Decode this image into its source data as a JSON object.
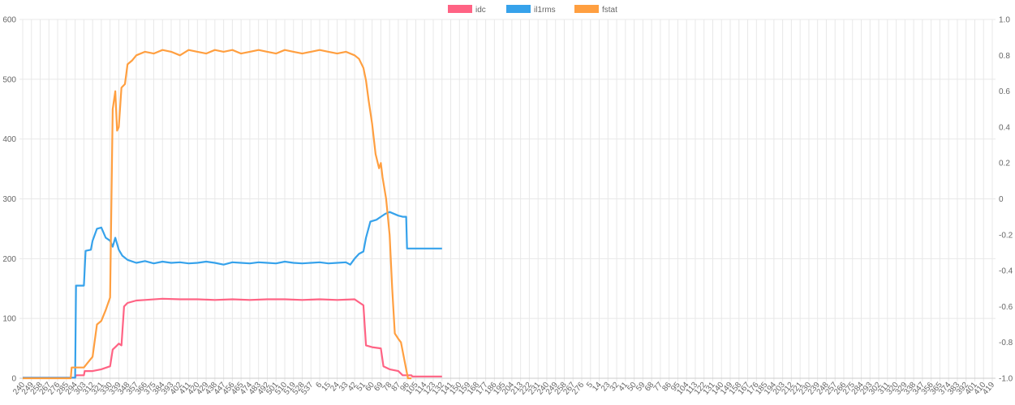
{
  "chart_data": {
    "type": "line",
    "legend": {
      "position": "top",
      "items": [
        "idc",
        "il1rms",
        "fstat"
      ]
    },
    "grid": true,
    "y_left": {
      "min": 0,
      "max": 600,
      "ticks": [
        0,
        100,
        200,
        300,
        400,
        500,
        600
      ]
    },
    "y_right": {
      "min": -1.0,
      "max": 1.0,
      "ticks": [
        -1.0,
        -0.8,
        -0.6,
        -0.4,
        -0.2,
        0,
        0.2,
        0.4,
        0.6,
        0.8,
        1.0
      ]
    },
    "x_tick_labels": [
      "240",
      "249",
      "258",
      "267",
      "276",
      "285",
      "294",
      "303",
      "312",
      "321",
      "330",
      "339",
      "348",
      "357",
      "366",
      "375",
      "384",
      "393",
      "402",
      "411",
      "420",
      "429",
      "438",
      "447",
      "456",
      "465",
      "474",
      "483",
      "492",
      "501",
      "510",
      "519",
      "528",
      "537",
      "6",
      "15",
      "24",
      "33",
      "42",
      "51",
      "60",
      "69",
      "78",
      "87",
      "96",
      "105",
      "114",
      "123",
      "132",
      "141",
      "150",
      "159",
      "168",
      "177",
      "186",
      "195",
      "204",
      "213",
      "222",
      "231",
      "240",
      "249",
      "258",
      "267",
      "276",
      "5",
      "14",
      "23",
      "32",
      "41",
      "50",
      "59",
      "68",
      "77",
      "86",
      "95",
      "104",
      "113",
      "122",
      "131",
      "140",
      "149",
      "158",
      "167",
      "176",
      "185",
      "194",
      "203",
      "212",
      "221",
      "230",
      "239",
      "248",
      "257",
      "266",
      "275",
      "284",
      "293",
      "302",
      "311",
      "320",
      "329",
      "338",
      "347",
      "356",
      "365",
      "374",
      "383",
      "392",
      "401",
      "410",
      "419"
    ],
    "series": [
      {
        "name": "idc",
        "color": "#ff6384",
        "axis": "left",
        "points": [
          [
            0,
            1
          ],
          [
            6,
            1
          ],
          [
            6.1,
            5
          ],
          [
            7,
            5
          ],
          [
            7.1,
            12
          ],
          [
            8,
            12
          ],
          [
            9,
            15
          ],
          [
            10,
            20
          ],
          [
            10.3,
            48
          ],
          [
            10.8,
            55
          ],
          [
            11,
            58
          ],
          [
            11.3,
            55
          ],
          [
            11.6,
            120
          ],
          [
            12,
            126
          ],
          [
            13,
            130
          ],
          [
            14,
            131
          ],
          [
            16,
            133
          ],
          [
            18,
            132
          ],
          [
            20,
            132
          ],
          [
            22,
            131
          ],
          [
            24,
            132
          ],
          [
            26,
            131
          ],
          [
            28,
            132
          ],
          [
            30,
            132
          ],
          [
            32,
            131
          ],
          [
            34,
            132
          ],
          [
            36,
            131
          ],
          [
            38,
            132
          ],
          [
            38.4,
            128
          ],
          [
            39,
            122
          ],
          [
            39.3,
            55
          ],
          [
            40,
            52
          ],
          [
            41,
            50
          ],
          [
            41.3,
            20
          ],
          [
            42,
            15
          ],
          [
            43,
            12
          ],
          [
            43.5,
            5
          ],
          [
            44.5,
            5
          ],
          [
            44.6,
            3
          ],
          [
            48,
            3
          ]
        ]
      },
      {
        "name": "il1rms",
        "color": "#36a2eb",
        "axis": "left",
        "points": [
          [
            0,
            1
          ],
          [
            6,
            1
          ],
          [
            6.1,
            155
          ],
          [
            7,
            155
          ],
          [
            7.2,
            213
          ],
          [
            7.8,
            215
          ],
          [
            8,
            230
          ],
          [
            8.5,
            250
          ],
          [
            9,
            252
          ],
          [
            9.5,
            235
          ],
          [
            10,
            230
          ],
          [
            10.3,
            220
          ],
          [
            10.6,
            235
          ],
          [
            11,
            215
          ],
          [
            11.4,
            205
          ],
          [
            12,
            198
          ],
          [
            13,
            193
          ],
          [
            14,
            196
          ],
          [
            15,
            192
          ],
          [
            16,
            195
          ],
          [
            17,
            193
          ],
          [
            18,
            194
          ],
          [
            19,
            192
          ],
          [
            20,
            193
          ],
          [
            21,
            195
          ],
          [
            22,
            193
          ],
          [
            23,
            190
          ],
          [
            24,
            194
          ],
          [
            25,
            193
          ],
          [
            26,
            192
          ],
          [
            27,
            194
          ],
          [
            28,
            193
          ],
          [
            29,
            192
          ],
          [
            30,
            195
          ],
          [
            31,
            193
          ],
          [
            32,
            192
          ],
          [
            33,
            193
          ],
          [
            34,
            194
          ],
          [
            35,
            192
          ],
          [
            36,
            193
          ],
          [
            37,
            194
          ],
          [
            37.5,
            190
          ],
          [
            38,
            200
          ],
          [
            38.5,
            208
          ],
          [
            39,
            212
          ],
          [
            39.3,
            235
          ],
          [
            39.8,
            262
          ],
          [
            40.5,
            265
          ],
          [
            41,
            270
          ],
          [
            41.5,
            275
          ],
          [
            42,
            278
          ],
          [
            43,
            272
          ],
          [
            43.5,
            270
          ],
          [
            43.9,
            270
          ],
          [
            44,
            217
          ],
          [
            48,
            217
          ]
        ]
      },
      {
        "name": "fstat",
        "color": "#ff9f40",
        "axis": "right",
        "points": [
          [
            0,
            -1.0
          ],
          [
            5.5,
            -1.0
          ],
          [
            5.6,
            -0.94
          ],
          [
            7,
            -0.94
          ],
          [
            7.5,
            -0.91
          ],
          [
            8,
            -0.88
          ],
          [
            8.5,
            -0.7
          ],
          [
            9,
            -0.68
          ],
          [
            9.5,
            -0.62
          ],
          [
            10,
            -0.55
          ],
          [
            10.3,
            0.5
          ],
          [
            10.6,
            0.6
          ],
          [
            10.8,
            0.38
          ],
          [
            11,
            0.4
          ],
          [
            11.3,
            0.62
          ],
          [
            11.7,
            0.64
          ],
          [
            12,
            0.75
          ],
          [
            12.5,
            0.77
          ],
          [
            13,
            0.8
          ],
          [
            14,
            0.82
          ],
          [
            15,
            0.81
          ],
          [
            16,
            0.83
          ],
          [
            17,
            0.82
          ],
          [
            18,
            0.8
          ],
          [
            19,
            0.83
          ],
          [
            20,
            0.82
          ],
          [
            21,
            0.81
          ],
          [
            22,
            0.83
          ],
          [
            23,
            0.82
          ],
          [
            24,
            0.83
          ],
          [
            25,
            0.81
          ],
          [
            26,
            0.82
          ],
          [
            27,
            0.83
          ],
          [
            28,
            0.82
          ],
          [
            29,
            0.81
          ],
          [
            30,
            0.83
          ],
          [
            31,
            0.82
          ],
          [
            32,
            0.81
          ],
          [
            33,
            0.82
          ],
          [
            34,
            0.83
          ],
          [
            35,
            0.82
          ],
          [
            36,
            0.81
          ],
          [
            37,
            0.82
          ],
          [
            38,
            0.8
          ],
          [
            38.5,
            0.78
          ],
          [
            39,
            0.73
          ],
          [
            39.3,
            0.66
          ],
          [
            39.6,
            0.55
          ],
          [
            40,
            0.42
          ],
          [
            40.4,
            0.25
          ],
          [
            40.8,
            0.17
          ],
          [
            41,
            0.2
          ],
          [
            41.2,
            0.12
          ],
          [
            41.6,
            0.0
          ],
          [
            42,
            -0.2
          ],
          [
            42.3,
            -0.5
          ],
          [
            42.6,
            -0.75
          ],
          [
            43,
            -0.78
          ],
          [
            43.3,
            -0.8
          ],
          [
            43.7,
            -0.9
          ],
          [
            44.1,
            -1.0
          ],
          [
            44.5,
            -1.0
          ]
        ]
      }
    ]
  }
}
